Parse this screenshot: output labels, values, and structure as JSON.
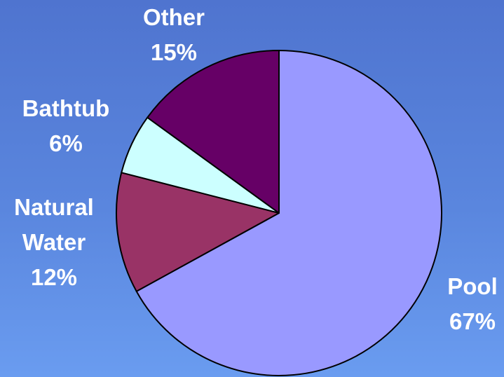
{
  "chart_data": {
    "type": "pie",
    "slices": [
      {
        "label": "Pool",
        "percent_label": "67%",
        "value": 67,
        "color": "#9999ff"
      },
      {
        "label": "Natural Water",
        "percent_label": "12%",
        "value": 12,
        "color": "#993366"
      },
      {
        "label": "Bathtub",
        "percent_label": "6%",
        "value": 6,
        "color": "#ccffff"
      },
      {
        "label": "Other",
        "percent_label": "15%",
        "value": 15,
        "color": "#660066"
      }
    ],
    "legend": "none",
    "label_display": "outside"
  },
  "labels": {
    "pool": {
      "line1": "Pool",
      "line2": "67%"
    },
    "natural_water": {
      "line1": "Natural",
      "line2": "Water",
      "line3": "12%"
    },
    "bathtub": {
      "line1": "Bathtub",
      "line2": "6%"
    },
    "other": {
      "line1": "Other",
      "line2": "15%"
    }
  }
}
